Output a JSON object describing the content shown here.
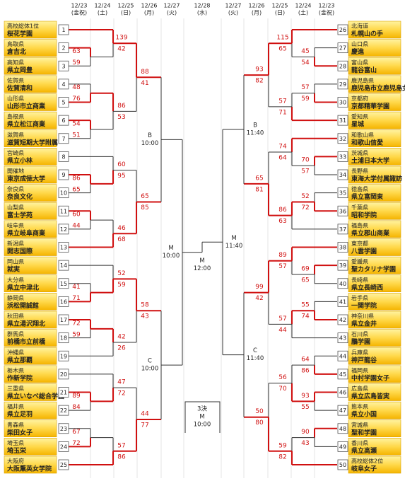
{
  "header": {
    "dates": [
      {
        "date": "12/23",
        "day": "(金祝)"
      },
      {
        "date": "12/24",
        "day": "(土)"
      },
      {
        "date": "12/25",
        "day": "(日)"
      },
      {
        "date": "12/26",
        "day": "(月)"
      },
      {
        "date": "12/27",
        "day": "(火)"
      },
      {
        "date": "12/28",
        "day": "(水)"
      },
      {
        "date": "12/27",
        "day": "(火)"
      },
      {
        "date": "12/26",
        "day": "(月)"
      },
      {
        "date": "12/25",
        "day": "(日)"
      },
      {
        "date": "12/24",
        "day": "(土)"
      },
      {
        "date": "12/23",
        "day": "(金祝)"
      }
    ]
  },
  "left": {
    "teams": [
      {
        "no": 1,
        "pref": "高校総体1位",
        "name": "桜花学園"
      },
      {
        "no": 2,
        "pref": "鳥取県",
        "name": "倉吉北"
      },
      {
        "no": 3,
        "pref": "高知県",
        "name": "県立岡豊"
      },
      {
        "no": 4,
        "pref": "佐賀県",
        "name": "佐賀清和"
      },
      {
        "no": 5,
        "pref": "山形県",
        "name": "山形市立商業"
      },
      {
        "no": 6,
        "pref": "島根県",
        "name": "県立松江商業"
      },
      {
        "no": 7,
        "pref": "滋賀県",
        "name": "滋賀短期大学附属"
      },
      {
        "no": 8,
        "pref": "宮崎県",
        "name": "県立小林"
      },
      {
        "no": 9,
        "pref": "開催地",
        "name": "東京成徳大学"
      },
      {
        "no": 10,
        "pref": "奈良県",
        "name": "奈良文化"
      },
      {
        "no": 11,
        "pref": "山梨県",
        "name": "富士学苑"
      },
      {
        "no": 12,
        "pref": "岐阜県",
        "name": "県立岐阜商業"
      },
      {
        "no": 13,
        "pref": "新潟県",
        "name": "開志国際"
      },
      {
        "no": 14,
        "pref": "岡山県",
        "name": "就実"
      },
      {
        "no": 15,
        "pref": "大分県",
        "name": "県立中津北"
      },
      {
        "no": 16,
        "pref": "静岡県",
        "name": "浜松開誠館"
      },
      {
        "no": 17,
        "pref": "秋田県",
        "name": "県立湯沢翔北"
      },
      {
        "no": 18,
        "pref": "群馬県",
        "name": "前橋市立前橋"
      },
      {
        "no": 19,
        "pref": "沖縄県",
        "name": "県立那覇"
      },
      {
        "no": 20,
        "pref": "栃木県",
        "name": "作新学院"
      },
      {
        "no": 21,
        "pref": "三重県",
        "name": "県立いなべ総合学園"
      },
      {
        "no": 22,
        "pref": "福井県",
        "name": "県立足羽"
      },
      {
        "no": 23,
        "pref": "青森県",
        "name": "柴田女子"
      },
      {
        "no": 24,
        "pref": "埼玉県",
        "name": "埼玉栄"
      },
      {
        "no": 25,
        "pref": "大阪府",
        "name": "大阪薫英女学院"
      }
    ],
    "bracket": {
      "label": "M",
      "time": "10:00",
      "entries": [
        {
          "label": "B",
          "time": "10:00",
          "entries": [
            {
              "scores": [
                88,
                41
              ],
              "entries": [
                {
                  "scores": [
                    139,
                    42
                  ],
                  "entries": [
                    1,
                    {
                      "scores": [
                        63,
                        59
                      ],
                      "entries": [
                        2,
                        3
                      ]
                    }
                  ]
                },
                {
                  "scores": [
                    86,
                    53
                  ],
                  "entries": [
                    {
                      "scores": [
                        48,
                        76
                      ],
                      "entries": [
                        4,
                        5
                      ]
                    },
                    {
                      "scores": [
                        54,
                        51
                      ],
                      "entries": [
                        6,
                        7
                      ]
                    }
                  ]
                }
              ]
            },
            {
              "scores": [
                65,
                85
              ],
              "entries": [
                {
                  "scores": [
                    60,
                    95
                  ],
                  "entries": [
                    8,
                    {
                      "scores": [
                        86,
                        65
                      ],
                      "entries": [
                        9,
                        10
                      ]
                    }
                  ]
                },
                {
                  "scores": [
                    46,
                    68
                  ],
                  "entries": [
                    {
                      "scores": [
                        60,
                        44
                      ],
                      "entries": [
                        11,
                        12
                      ]
                    },
                    13
                  ]
                }
              ]
            }
          ]
        },
        {
          "label": "C",
          "time": "10:00",
          "entries": [
            {
              "scores": [
                58,
                43
              ],
              "entries": [
                {
                  "scores": [
                    52,
                    59
                  ],
                  "entries": [
                    14,
                    {
                      "scores": [
                        41,
                        71
                      ],
                      "entries": [
                        15,
                        16
                      ]
                    }
                  ]
                },
                {
                  "scores": [
                    42,
                    26
                  ],
                  "entries": [
                    {
                      "scores": [
                        72,
                        59
                      ],
                      "entries": [
                        17,
                        18
                      ]
                    },
                    19
                  ]
                }
              ]
            },
            {
              "scores": [
                44,
                77
              ],
              "entries": [
                {
                  "scores": [
                    47,
                    72
                  ],
                  "entries": [
                    20,
                    {
                      "scores": [
                        89,
                        84
                      ],
                      "entries": [
                        21,
                        22
                      ]
                    }
                  ]
                },
                {
                  "scores": [
                    57,
                    86
                  ],
                  "entries": [
                    {
                      "scores": [
                        67,
                        72
                      ],
                      "entries": [
                        23,
                        24
                      ]
                    },
                    25
                  ]
                }
              ]
            }
          ]
        }
      ]
    }
  },
  "right": {
    "teams": [
      {
        "no": 26,
        "pref": "北海道",
        "name": "札幌山の手"
      },
      {
        "no": 27,
        "pref": "山口県",
        "name": "慶進"
      },
      {
        "no": 28,
        "pref": "富山県",
        "name": "龍谷富山"
      },
      {
        "no": 29,
        "pref": "鹿児島県",
        "name": "鹿児島市立鹿児島女子"
      },
      {
        "no": 30,
        "pref": "京都府",
        "name": "京都精華学園"
      },
      {
        "no": 31,
        "pref": "愛知県",
        "name": "星城"
      },
      {
        "no": 32,
        "pref": "和歌山県",
        "name": "和歌山信愛"
      },
      {
        "no": 33,
        "pref": "茨城県",
        "name": "土浦日本大学"
      },
      {
        "no": 34,
        "pref": "長野県",
        "name": "東海大学付属諏訪"
      },
      {
        "no": 35,
        "pref": "徳島県",
        "name": "県立富岡東"
      },
      {
        "no": 36,
        "pref": "千葉県",
        "name": "昭和学院"
      },
      {
        "no": 37,
        "pref": "福島県",
        "name": "県立郡山商業"
      },
      {
        "no": 38,
        "pref": "東京都",
        "name": "八雲学園"
      },
      {
        "no": 39,
        "pref": "愛媛県",
        "name": "聖カタリナ学園"
      },
      {
        "no": 40,
        "pref": "長崎県",
        "name": "県立長崎西"
      },
      {
        "no": 41,
        "pref": "岩手県",
        "name": "一関学院"
      },
      {
        "no": 42,
        "pref": "神奈川県",
        "name": "県立金井"
      },
      {
        "no": 43,
        "pref": "石川県",
        "name": "鵬学園"
      },
      {
        "no": 44,
        "pref": "兵庫県",
        "name": "神戸龍谷"
      },
      {
        "no": 45,
        "pref": "福岡県",
        "name": "中村学園女子"
      },
      {
        "no": 46,
        "pref": "広島県",
        "name": "県立広島皆実"
      },
      {
        "no": 47,
        "pref": "熊本県",
        "name": "県立小国"
      },
      {
        "no": 48,
        "pref": "宮城県",
        "name": "聖和学園"
      },
      {
        "no": 49,
        "pref": "香川県",
        "name": "県立高瀬"
      },
      {
        "no": 50,
        "pref": "高校総体2位",
        "name": "岐阜女子"
      }
    ],
    "bracket": {
      "label": "M",
      "time": "11:40",
      "entries": [
        {
          "label": "B",
          "time": "11:40",
          "entries": [
            {
              "scores": [
                93,
                82
              ],
              "entries": [
                {
                  "scores": [
                    115,
                    65
                  ],
                  "entries": [
                    26,
                    {
                      "scores": [
                        45,
                        54
                      ],
                      "entries": [
                        27,
                        28
                      ]
                    }
                  ]
                },
                {
                  "scores": [
                    57,
                    71
                  ],
                  "entries": [
                    {
                      "scores": [
                        57,
                        59
                      ],
                      "entries": [
                        29,
                        30
                      ]
                    },
                    31
                  ]
                }
              ]
            },
            {
              "scores": [
                65,
                81
              ],
              "entries": [
                {
                  "scores": [
                    74,
                    64
                  ],
                  "entries": [
                    32,
                    {
                      "scores": [
                        70,
                        57
                      ],
                      "entries": [
                        33,
                        34
                      ]
                    }
                  ]
                },
                {
                  "scores": [
                    86,
                    63
                  ],
                  "entries": [
                    {
                      "scores": [
                        52,
                        72
                      ],
                      "entries": [
                        35,
                        36
                      ]
                    },
                    37
                  ]
                }
              ]
            }
          ]
        },
        {
          "label": "C",
          "time": "11:40",
          "entries": [
            {
              "scores": [
                99,
                42
              ],
              "entries": [
                {
                  "scores": [
                    89,
                    57
                  ],
                  "entries": [
                    38,
                    {
                      "scores": [
                        69,
                        65
                      ],
                      "entries": [
                        39,
                        40
                      ]
                    }
                  ]
                },
                {
                  "scores": [
                    57,
                    44
                  ],
                  "entries": [
                    {
                      "scores": [
                        55,
                        74
                      ],
                      "entries": [
                        41,
                        42
                      ]
                    },
                    43
                  ]
                }
              ]
            },
            {
              "scores": [
                50,
                80
              ],
              "entries": [
                {
                  "scores": [
                    56,
                    70
                  ],
                  "entries": [
                    {
                      "scores": [
                        64,
                        86
                      ],
                      "entries": [
                        44,
                        45
                      ]
                    },
                    {
                      "scores": [
                        93,
                        55
                      ],
                      "entries": [
                        46,
                        47
                      ]
                    }
                  ]
                },
                {
                  "scores": [
                    59,
                    82
                  ],
                  "entries": [
                    {
                      "scores": [
                        90,
                        43
                      ],
                      "entries": [
                        48,
                        49
                      ]
                    },
                    50
                  ]
                }
              ]
            }
          ]
        }
      ]
    }
  },
  "final": {
    "label": "M",
    "time": "12:00"
  },
  "third_place": {
    "label": "3決",
    "sub": "M",
    "time": "10:00"
  }
}
